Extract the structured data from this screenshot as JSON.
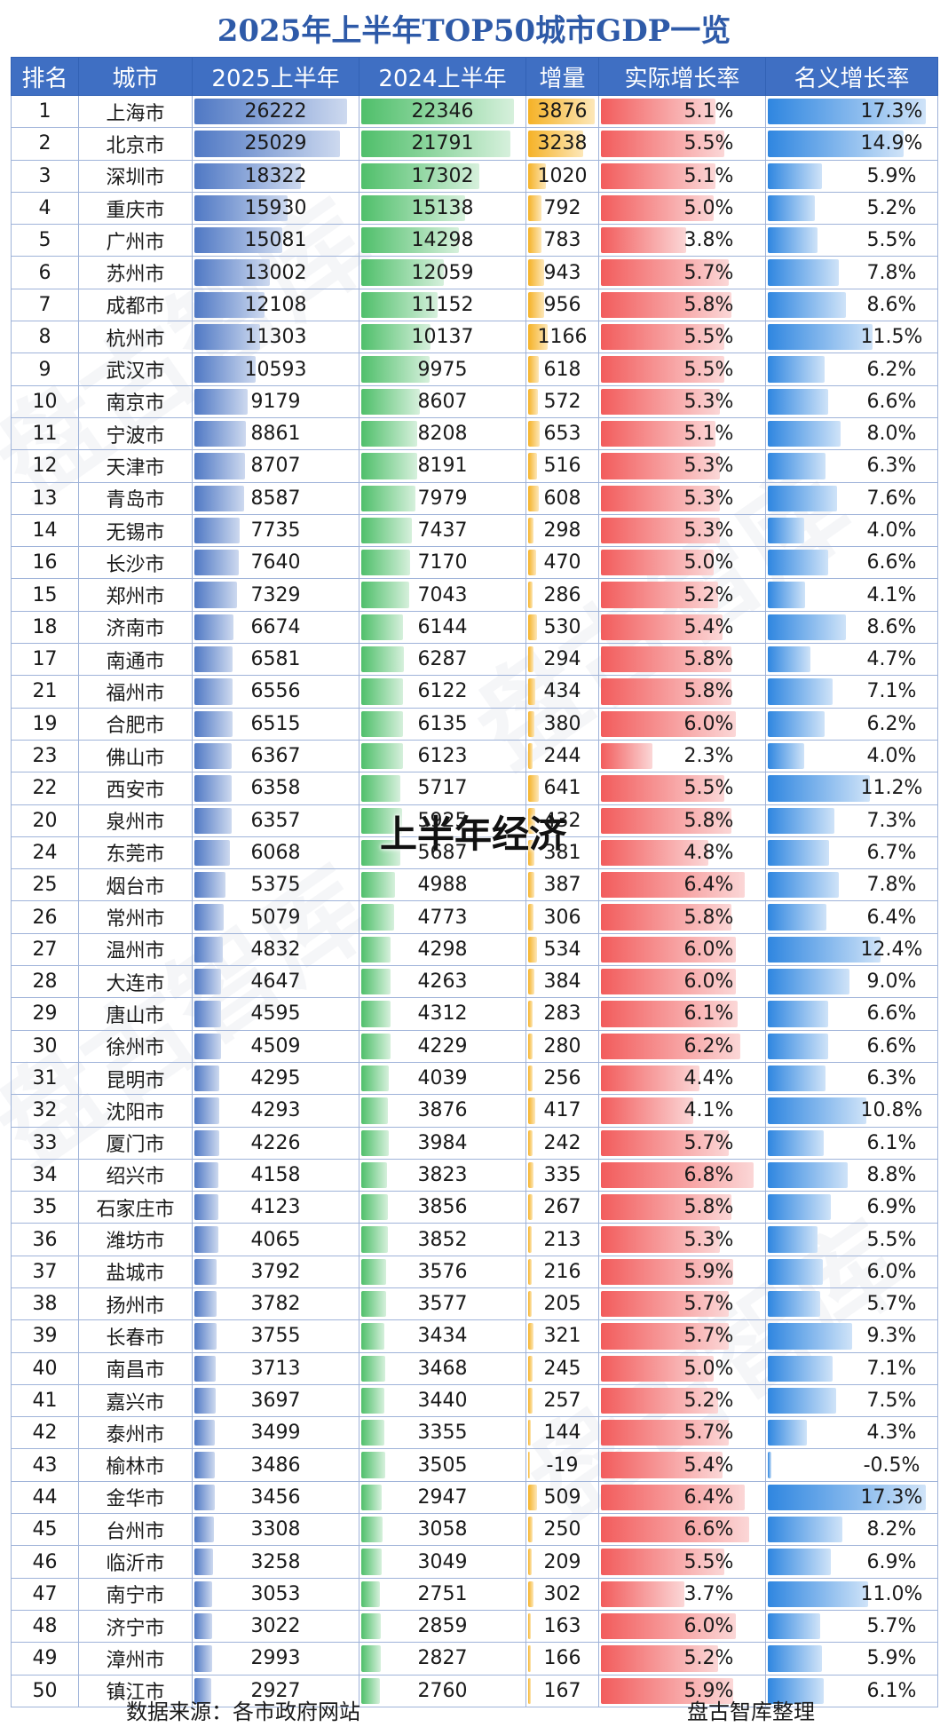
{
  "title": "2025年上半年TOP50城市GDP一览",
  "headers": [
    "排名",
    "城市",
    "2025上半年",
    "2024上半年",
    "增量",
    "实际增长率",
    "名义增长率"
  ],
  "overlay_text": "上半年经济",
  "watermark_text": "盘古智库",
  "footer": {
    "source": "数据来源：各市政府网站",
    "organizer": "盘古智库整理"
  },
  "colors": {
    "title": "#2e5aa8",
    "header_bg": "#3f6fc3",
    "bar_2025": "#4f78c4",
    "bar_2024": "#4fbf6a",
    "bar_increment": "#f5b227",
    "bar_real": "#f25c5c",
    "bar_nominal": "#2f86e0"
  },
  "rows": [
    {
      "rank": "1",
      "city": "上海市",
      "gdp2025": "26222",
      "gdp2024": "22346",
      "increment": "3876",
      "real": "5.1%",
      "nominal": "17.3%"
    },
    {
      "rank": "2",
      "city": "北京市",
      "gdp2025": "25029",
      "gdp2024": "21791",
      "increment": "3238",
      "real": "5.5%",
      "nominal": "14.9%"
    },
    {
      "rank": "3",
      "city": "深圳市",
      "gdp2025": "18322",
      "gdp2024": "17302",
      "increment": "1020",
      "real": "5.1%",
      "nominal": "5.9%"
    },
    {
      "rank": "4",
      "city": "重庆市",
      "gdp2025": "15930",
      "gdp2024": "15138",
      "increment": "792",
      "real": "5.0%",
      "nominal": "5.2%"
    },
    {
      "rank": "5",
      "city": "广州市",
      "gdp2025": "15081",
      "gdp2024": "14298",
      "increment": "783",
      "real": "3.8%",
      "nominal": "5.5%"
    },
    {
      "rank": "6",
      "city": "苏州市",
      "gdp2025": "13002",
      "gdp2024": "12059",
      "increment": "943",
      "real": "5.7%",
      "nominal": "7.8%"
    },
    {
      "rank": "7",
      "city": "成都市",
      "gdp2025": "12108",
      "gdp2024": "11152",
      "increment": "956",
      "real": "5.8%",
      "nominal": "8.6%"
    },
    {
      "rank": "8",
      "city": "杭州市",
      "gdp2025": "11303",
      "gdp2024": "10137",
      "increment": "1166",
      "real": "5.5%",
      "nominal": "11.5%"
    },
    {
      "rank": "9",
      "city": "武汉市",
      "gdp2025": "10593",
      "gdp2024": "9975",
      "increment": "618",
      "real": "5.5%",
      "nominal": "6.2%"
    },
    {
      "rank": "10",
      "city": "南京市",
      "gdp2025": "9179",
      "gdp2024": "8607",
      "increment": "572",
      "real": "5.3%",
      "nominal": "6.6%"
    },
    {
      "rank": "11",
      "city": "宁波市",
      "gdp2025": "8861",
      "gdp2024": "8208",
      "increment": "653",
      "real": "5.1%",
      "nominal": "8.0%"
    },
    {
      "rank": "12",
      "city": "天津市",
      "gdp2025": "8707",
      "gdp2024": "8191",
      "increment": "516",
      "real": "5.3%",
      "nominal": "6.3%"
    },
    {
      "rank": "13",
      "city": "青岛市",
      "gdp2025": "8587",
      "gdp2024": "7979",
      "increment": "608",
      "real": "5.3%",
      "nominal": "7.6%"
    },
    {
      "rank": "14",
      "city": "无锡市",
      "gdp2025": "7735",
      "gdp2024": "7437",
      "increment": "298",
      "real": "5.3%",
      "nominal": "4.0%"
    },
    {
      "rank": "16",
      "city": "长沙市",
      "gdp2025": "7640",
      "gdp2024": "7170",
      "increment": "470",
      "real": "5.0%",
      "nominal": "6.6%"
    },
    {
      "rank": "15",
      "city": "郑州市",
      "gdp2025": "7329",
      "gdp2024": "7043",
      "increment": "286",
      "real": "5.2%",
      "nominal": "4.1%"
    },
    {
      "rank": "18",
      "city": "济南市",
      "gdp2025": "6674",
      "gdp2024": "6144",
      "increment": "530",
      "real": "5.4%",
      "nominal": "8.6%"
    },
    {
      "rank": "17",
      "city": "南通市",
      "gdp2025": "6581",
      "gdp2024": "6287",
      "increment": "294",
      "real": "5.8%",
      "nominal": "4.7%"
    },
    {
      "rank": "21",
      "city": "福州市",
      "gdp2025": "6556",
      "gdp2024": "6122",
      "increment": "434",
      "real": "5.8%",
      "nominal": "7.1%"
    },
    {
      "rank": "19",
      "city": "合肥市",
      "gdp2025": "6515",
      "gdp2024": "6135",
      "increment": "380",
      "real": "6.0%",
      "nominal": "6.2%"
    },
    {
      "rank": "23",
      "city": "佛山市",
      "gdp2025": "6367",
      "gdp2024": "6123",
      "increment": "244",
      "real": "2.3%",
      "nominal": "4.0%"
    },
    {
      "rank": "22",
      "city": "西安市",
      "gdp2025": "6358",
      "gdp2024": "5717",
      "increment": "641",
      "real": "5.5%",
      "nominal": "11.2%"
    },
    {
      "rank": "20",
      "city": "泉州市",
      "gdp2025": "6357",
      "gdp2024": "5925",
      "increment": "432",
      "real": "5.8%",
      "nominal": "7.3%"
    },
    {
      "rank": "24",
      "city": "东莞市",
      "gdp2025": "6068",
      "gdp2024": "5687",
      "increment": "381",
      "real": "4.8%",
      "nominal": "6.7%"
    },
    {
      "rank": "25",
      "city": "烟台市",
      "gdp2025": "5375",
      "gdp2024": "4988",
      "increment": "387",
      "real": "6.4%",
      "nominal": "7.8%"
    },
    {
      "rank": "26",
      "city": "常州市",
      "gdp2025": "5079",
      "gdp2024": "4773",
      "increment": "306",
      "real": "5.8%",
      "nominal": "6.4%"
    },
    {
      "rank": "27",
      "city": "温州市",
      "gdp2025": "4832",
      "gdp2024": "4298",
      "increment": "534",
      "real": "6.0%",
      "nominal": "12.4%"
    },
    {
      "rank": "28",
      "city": "大连市",
      "gdp2025": "4647",
      "gdp2024": "4263",
      "increment": "384",
      "real": "6.0%",
      "nominal": "9.0%"
    },
    {
      "rank": "29",
      "city": "唐山市",
      "gdp2025": "4595",
      "gdp2024": "4312",
      "increment": "283",
      "real": "6.1%",
      "nominal": "6.6%"
    },
    {
      "rank": "30",
      "city": "徐州市",
      "gdp2025": "4509",
      "gdp2024": "4229",
      "increment": "280",
      "real": "6.2%",
      "nominal": "6.6%"
    },
    {
      "rank": "31",
      "city": "昆明市",
      "gdp2025": "4295",
      "gdp2024": "4039",
      "increment": "256",
      "real": "4.4%",
      "nominal": "6.3%"
    },
    {
      "rank": "32",
      "city": "沈阳市",
      "gdp2025": "4293",
      "gdp2024": "3876",
      "increment": "417",
      "real": "4.1%",
      "nominal": "10.8%"
    },
    {
      "rank": "33",
      "city": "厦门市",
      "gdp2025": "4226",
      "gdp2024": "3984",
      "increment": "242",
      "real": "5.7%",
      "nominal": "6.1%"
    },
    {
      "rank": "34",
      "city": "绍兴市",
      "gdp2025": "4158",
      "gdp2024": "3823",
      "increment": "335",
      "real": "6.8%",
      "nominal": "8.8%"
    },
    {
      "rank": "35",
      "city": "石家庄市",
      "gdp2025": "4123",
      "gdp2024": "3856",
      "increment": "267",
      "real": "5.8%",
      "nominal": "6.9%"
    },
    {
      "rank": "36",
      "city": "潍坊市",
      "gdp2025": "4065",
      "gdp2024": "3852",
      "increment": "213",
      "real": "5.3%",
      "nominal": "5.5%"
    },
    {
      "rank": "37",
      "city": "盐城市",
      "gdp2025": "3792",
      "gdp2024": "3576",
      "increment": "216",
      "real": "5.9%",
      "nominal": "6.0%"
    },
    {
      "rank": "38",
      "city": "扬州市",
      "gdp2025": "3782",
      "gdp2024": "3577",
      "increment": "205",
      "real": "5.7%",
      "nominal": "5.7%"
    },
    {
      "rank": "39",
      "city": "长春市",
      "gdp2025": "3755",
      "gdp2024": "3434",
      "increment": "321",
      "real": "5.7%",
      "nominal": "9.3%"
    },
    {
      "rank": "40",
      "city": "南昌市",
      "gdp2025": "3713",
      "gdp2024": "3468",
      "increment": "245",
      "real": "5.0%",
      "nominal": "7.1%"
    },
    {
      "rank": "41",
      "city": "嘉兴市",
      "gdp2025": "3697",
      "gdp2024": "3440",
      "increment": "257",
      "real": "5.2%",
      "nominal": "7.5%"
    },
    {
      "rank": "42",
      "city": "泰州市",
      "gdp2025": "3499",
      "gdp2024": "3355",
      "increment": "144",
      "real": "5.7%",
      "nominal": "4.3%"
    },
    {
      "rank": "43",
      "city": "榆林市",
      "gdp2025": "3486",
      "gdp2024": "3505",
      "increment": "-19",
      "real": "5.4%",
      "nominal": "-0.5%"
    },
    {
      "rank": "44",
      "city": "金华市",
      "gdp2025": "3456",
      "gdp2024": "2947",
      "increment": "509",
      "real": "6.4%",
      "nominal": "17.3%"
    },
    {
      "rank": "45",
      "city": "台州市",
      "gdp2025": "3308",
      "gdp2024": "3058",
      "increment": "250",
      "real": "6.6%",
      "nominal": "8.2%"
    },
    {
      "rank": "46",
      "city": "临沂市",
      "gdp2025": "3258",
      "gdp2024": "3049",
      "increment": "209",
      "real": "5.5%",
      "nominal": "6.9%"
    },
    {
      "rank": "47",
      "city": "南宁市",
      "gdp2025": "3053",
      "gdp2024": "2751",
      "increment": "302",
      "real": "3.7%",
      "nominal": "11.0%"
    },
    {
      "rank": "48",
      "city": "济宁市",
      "gdp2025": "3022",
      "gdp2024": "2859",
      "increment": "163",
      "real": "6.0%",
      "nominal": "5.7%"
    },
    {
      "rank": "49",
      "city": "漳州市",
      "gdp2025": "2993",
      "gdp2024": "2827",
      "increment": "166",
      "real": "5.2%",
      "nominal": "5.9%"
    },
    {
      "rank": "50",
      "city": "镇江市",
      "gdp2025": "2927",
      "gdp2024": "2760",
      "increment": "167",
      "real": "5.9%",
      "nominal": "6.1%"
    }
  ]
}
